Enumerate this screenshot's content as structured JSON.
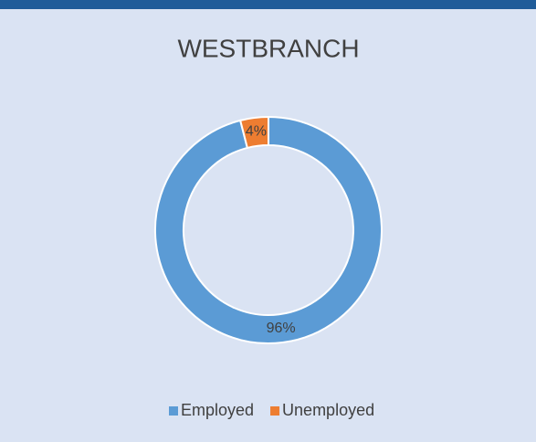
{
  "chart_data": {
    "type": "pie",
    "title": "WESTBRANCH",
    "categories": [
      "Employed",
      "Unemployed"
    ],
    "values": [
      96,
      4
    ],
    "value_labels": [
      "96%",
      "4%"
    ],
    "colors": [
      "#5b9bd5",
      "#ed7d31"
    ],
    "donut": true,
    "legend": "bottom"
  }
}
